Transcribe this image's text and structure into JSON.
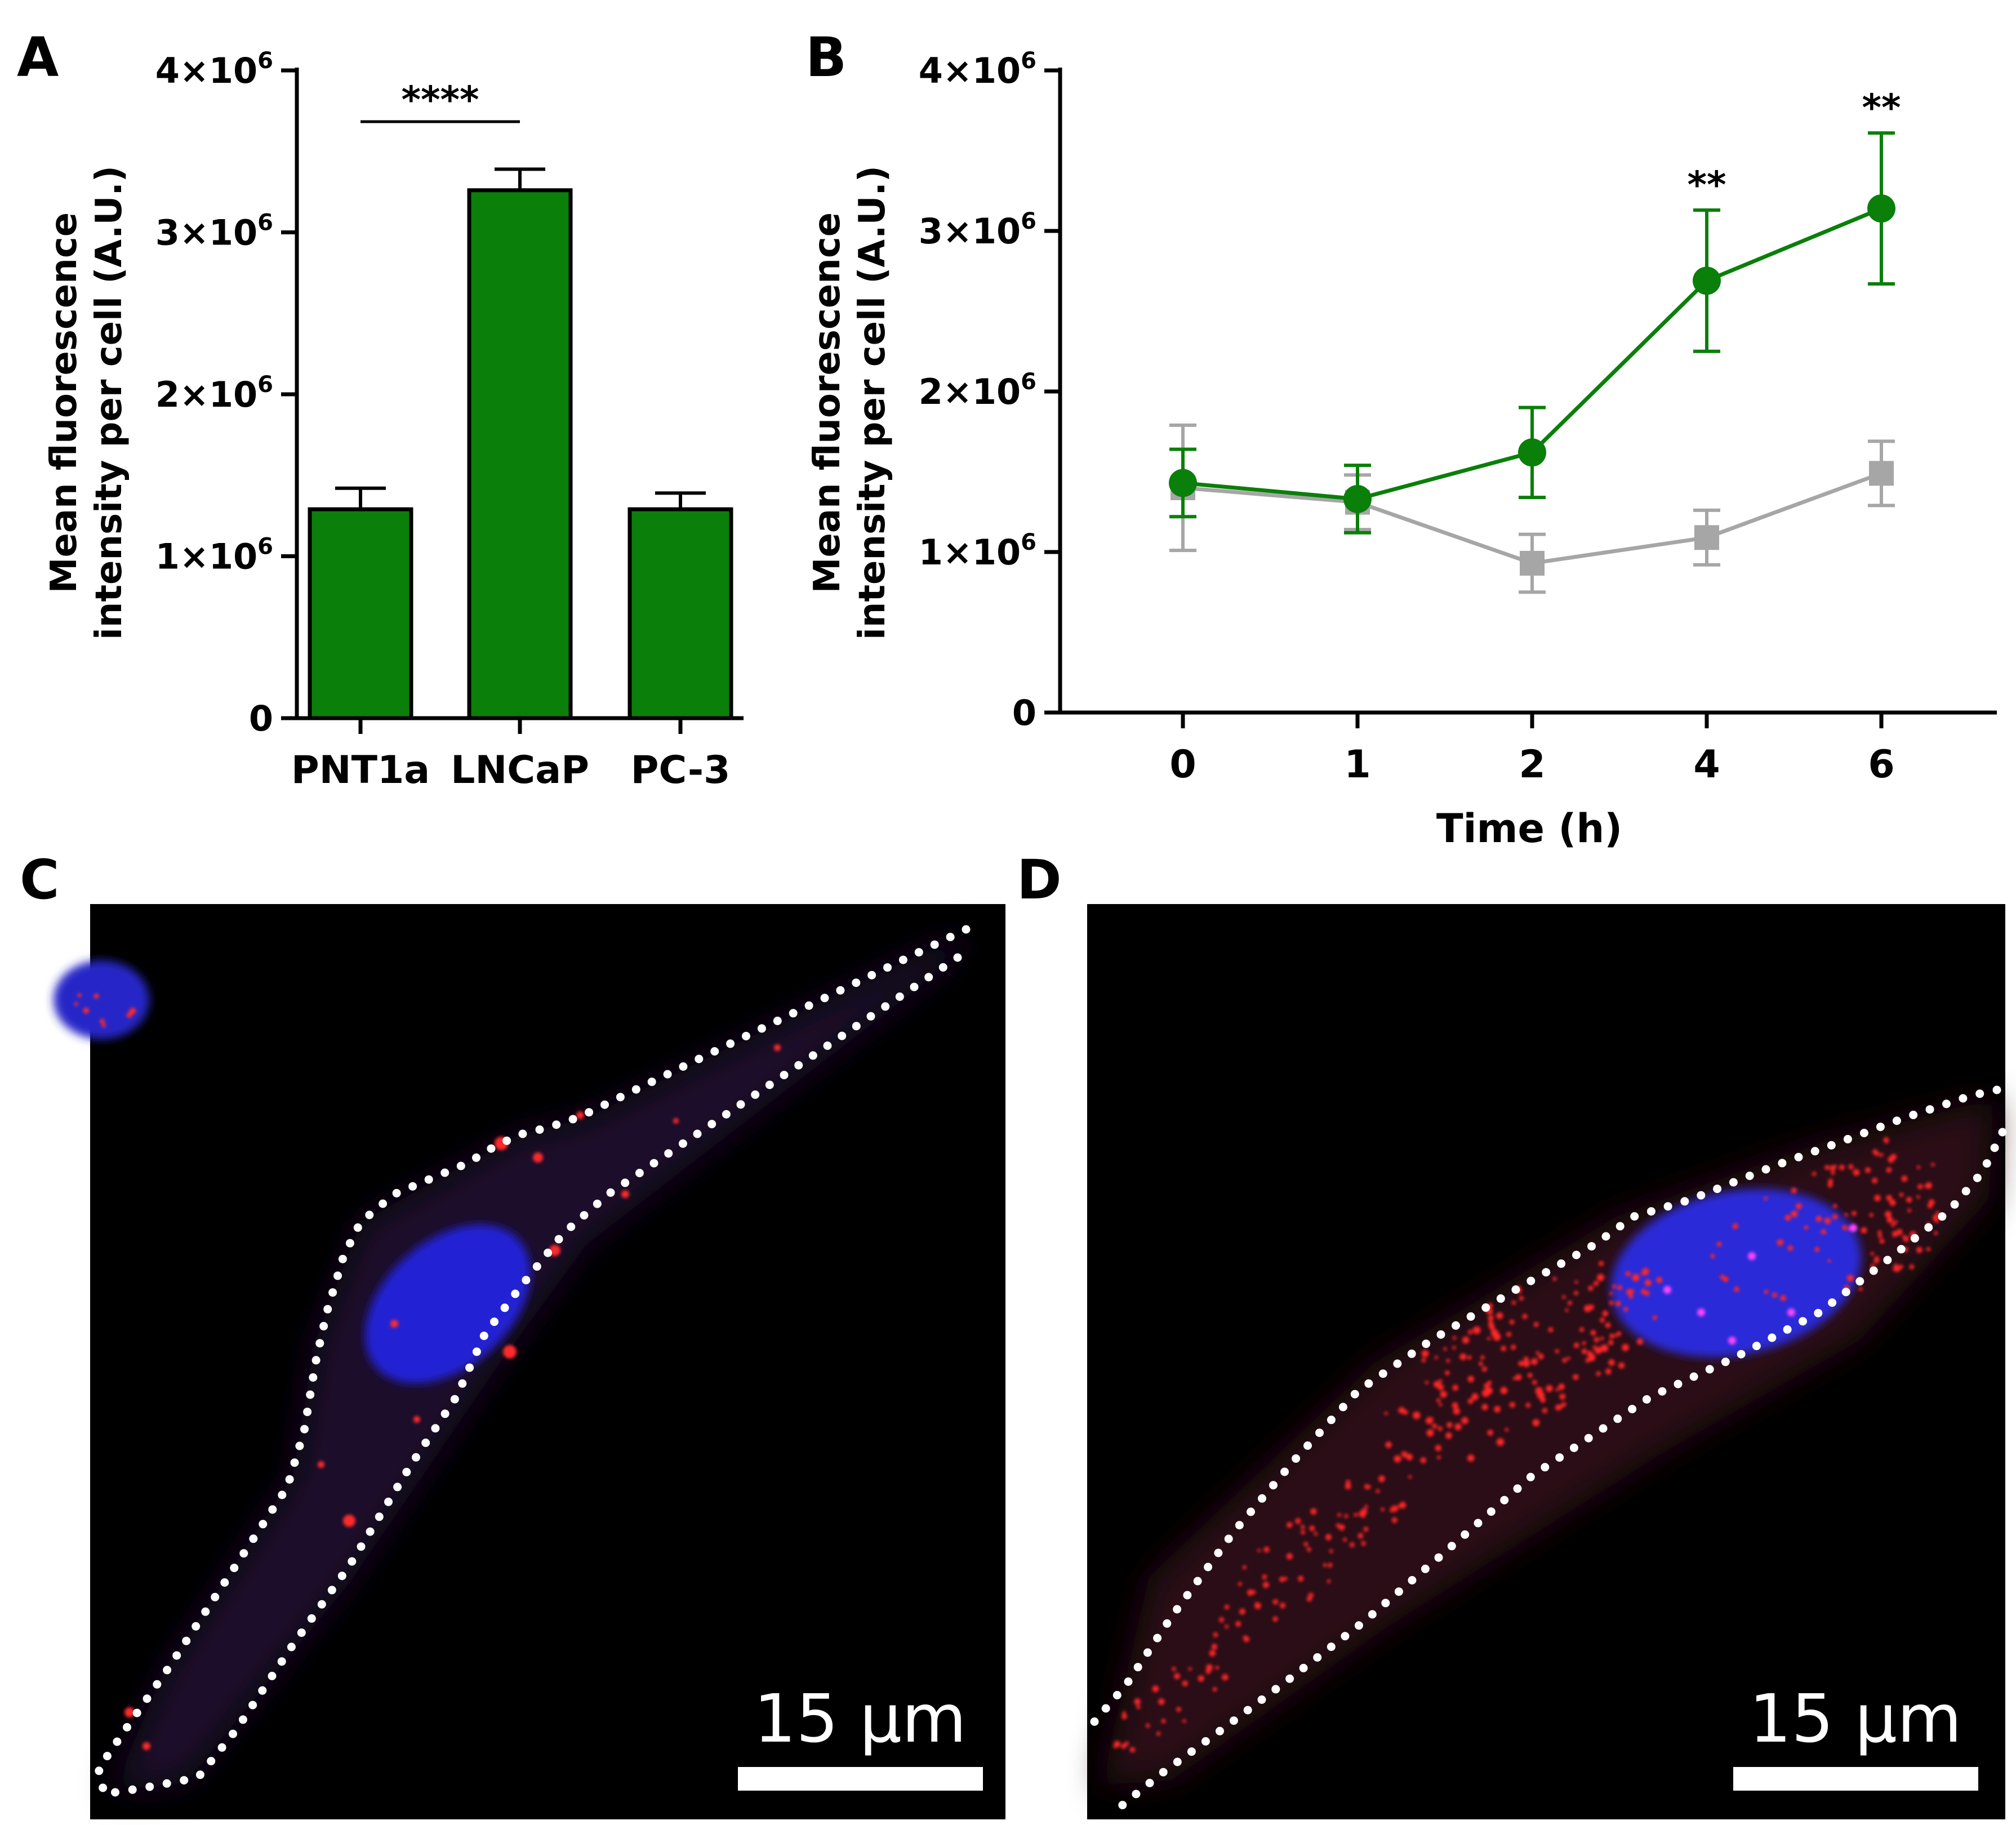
{
  "panels": {
    "a": "A",
    "b": "B",
    "c": "C",
    "d": "D"
  },
  "colors": {
    "green": "#0a7f0a",
    "gray": "#a6a6a6",
    "nucleus": "#2f2fd8",
    "vesicle": "#ff2424",
    "outline": "#ffffff"
  },
  "chart_data": [
    {
      "type": "bar",
      "panel": "A",
      "categories": [
        "PNT1a",
        "LNCaP",
        "PC-3"
      ],
      "values": [
        1290000,
        3260000,
        1290000
      ],
      "errors": [
        130000,
        130000,
        100000
      ],
      "ylabel_line1": "Mean fluorescence",
      "ylabel_line2": "intensity per cell (A.U.)",
      "ylim": [
        0,
        4000000
      ],
      "yticks": [
        {
          "value": 0,
          "mant": "0",
          "exp": ""
        },
        {
          "value": 1000000,
          "mant": "1×10",
          "exp": "6"
        },
        {
          "value": 2000000,
          "mant": "2×10",
          "exp": "6"
        },
        {
          "value": 3000000,
          "mant": "3×10",
          "exp": "6"
        },
        {
          "value": 4000000,
          "mant": "4×10",
          "exp": "6"
        }
      ],
      "bracket": {
        "from": 0,
        "to": 1,
        "label": "****"
      }
    },
    {
      "type": "line",
      "panel": "B",
      "x": [
        0,
        1,
        2,
        4,
        6
      ],
      "xlabels": [
        "0",
        "1",
        "2",
        "4",
        "6"
      ],
      "xlabel": "Time (h)",
      "ylabel_line1": "Mean fluorescence",
      "ylabel_line2": "intensity per cell (A.U.)",
      "ylim": [
        0,
        4000000
      ],
      "yticks": [
        {
          "value": 0,
          "mant": "0",
          "exp": ""
        },
        {
          "value": 1000000,
          "mant": "1×10",
          "exp": "6"
        },
        {
          "value": 2000000,
          "mant": "2×10",
          "exp": "6"
        },
        {
          "value": 3000000,
          "mant": "3×10",
          "exp": "6"
        },
        {
          "value": 4000000,
          "mant": "4×10",
          "exp": "6"
        }
      ],
      "series": [
        {
          "name": "gray",
          "marker": "square",
          "values": [
            1400000,
            1310000,
            930000,
            1090000,
            1490000
          ],
          "errors": [
            390000,
            170000,
            180000,
            170000,
            200000
          ]
        },
        {
          "name": "green",
          "marker": "circle",
          "values": [
            1430000,
            1330000,
            1620000,
            2690000,
            3140000
          ],
          "errors": [
            210000,
            210000,
            280000,
            440000,
            470000
          ]
        }
      ],
      "annotations": [
        {
          "x": 4,
          "label": "**"
        },
        {
          "x": 6,
          "label": "**"
        }
      ]
    }
  ],
  "images": {
    "c": {
      "scalebar_label": "15 µm"
    },
    "d": {
      "scalebar_label": "15 µm"
    }
  }
}
